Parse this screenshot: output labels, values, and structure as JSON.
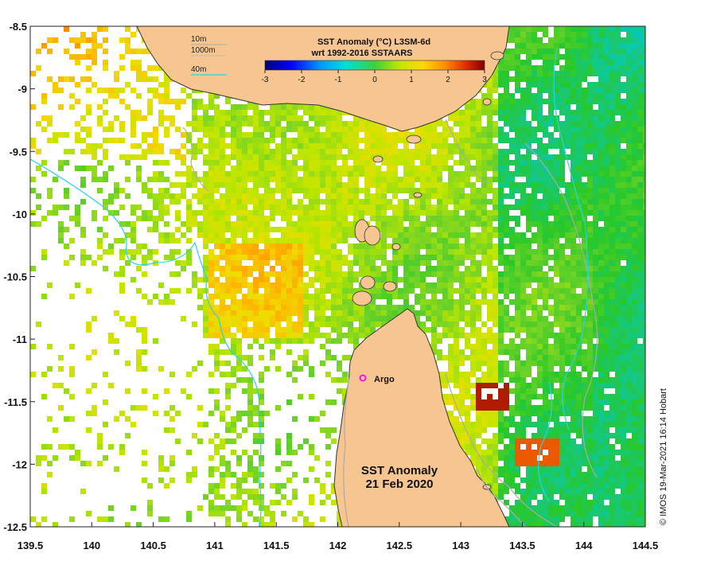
{
  "map": {
    "title_line1": "SST Anomaly (°C) L3SM-6d",
    "title_line2": "wrt 1992-2016 SSTAARS",
    "annotation_line1": "SST Anomaly",
    "annotation_line2": "21 Feb 2020",
    "marker_label": "Argo",
    "credit": "© IMOS 19-Mar-2021 16:14 Hobart",
    "contour_legend": [
      "10m",
      "1000m",
      "40m"
    ],
    "x_ticks": [
      "139.5",
      "140",
      "140.5",
      "141",
      "141.5",
      "142",
      "142.5",
      "143",
      "143.5",
      "144",
      "144.5"
    ],
    "y_ticks": [
      "-8.5",
      "-9",
      "-9.5",
      "-10",
      "-10.5",
      "-11",
      "-11.5",
      "-12",
      "-12.5"
    ],
    "colorbar_ticks": [
      "-3",
      "-2",
      "-1",
      "0",
      "1",
      "2",
      "3"
    ],
    "colors": {
      "land": "#f7c590",
      "land_edge": "#333333",
      "contour_10m": "#aaaaaa",
      "contour_40m": "#22d6e8",
      "marker": "#ff00ff"
    }
  }
}
